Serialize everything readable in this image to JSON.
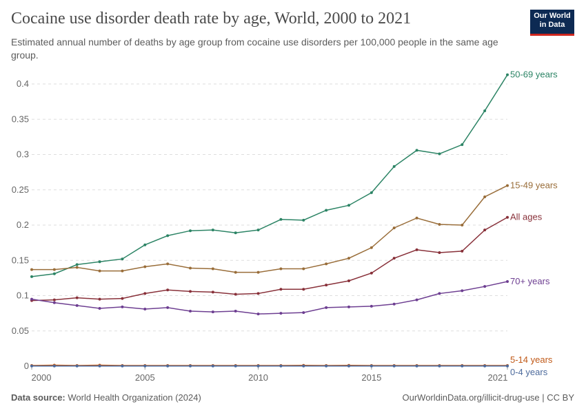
{
  "header": {
    "title": "Cocaine use disorder death rate by age, World, 2000 to 2021",
    "subtitle": "Estimated annual number of deaths by age group from cocaine use disorders per 100,000 people in the same age group.",
    "logo": "Our World in Data"
  },
  "footer": {
    "source_label": "Data source:",
    "source": "World Health Organization (2024)",
    "link": "OurWorldinData.org/illicit-drug-use | CC BY"
  },
  "chart_data": {
    "type": "line",
    "title": "Cocaine use disorder death rate by age, World, 2000 to 2021",
    "xlabel": "",
    "ylabel": "",
    "xlim": [
      2000,
      2021
    ],
    "ylim": [
      0,
      0.4
    ],
    "grid": "horizontal dashed",
    "legend": "inline-right",
    "x_ticks": [
      "2000",
      "2005",
      "2010",
      "2015",
      "2021"
    ],
    "y_ticks": [
      "0",
      "0.05",
      "0.1",
      "0.15",
      "0.2",
      "0.25",
      "0.3",
      "0.35",
      "0.4"
    ],
    "x": [
      2000,
      2001,
      2002,
      2003,
      2004,
      2005,
      2006,
      2007,
      2008,
      2009,
      2010,
      2011,
      2012,
      2013,
      2014,
      2015,
      2016,
      2017,
      2018,
      2019,
      2020,
      2021
    ],
    "series": [
      {
        "name": "50-69 years",
        "color": "#2c8465",
        "values": [
          0.127,
          0.131,
          0.144,
          0.148,
          0.152,
          0.172,
          0.185,
          0.192,
          0.193,
          0.189,
          0.193,
          0.208,
          0.207,
          0.221,
          0.228,
          0.246,
          0.283,
          0.306,
          0.301,
          0.314,
          0.362,
          0.413
        ]
      },
      {
        "name": "15-49 years",
        "color": "#996d39",
        "values": [
          0.137,
          0.137,
          0.14,
          0.135,
          0.135,
          0.141,
          0.145,
          0.139,
          0.138,
          0.133,
          0.133,
          0.138,
          0.138,
          0.145,
          0.153,
          0.168,
          0.196,
          0.21,
          0.201,
          0.2,
          0.24,
          0.256
        ]
      },
      {
        "name": "All ages",
        "color": "#883039",
        "values": [
          0.093,
          0.094,
          0.097,
          0.095,
          0.096,
          0.103,
          0.108,
          0.106,
          0.105,
          0.102,
          0.103,
          0.109,
          0.109,
          0.115,
          0.121,
          0.132,
          0.153,
          0.165,
          0.161,
          0.163,
          0.193,
          0.211
        ]
      },
      {
        "name": "70+ years",
        "color": "#6d3e91",
        "values": [
          0.095,
          0.09,
          0.086,
          0.082,
          0.084,
          0.081,
          0.083,
          0.078,
          0.077,
          0.078,
          0.074,
          0.075,
          0.076,
          0.083,
          0.084,
          0.085,
          0.088,
          0.094,
          0.103,
          0.107,
          0.113,
          0.12
        ]
      },
      {
        "name": "5-14 years",
        "color": "#c05917",
        "values": [
          0.001,
          0.0015,
          0.001,
          0.0015,
          0.001,
          0.001,
          0.001,
          0.001,
          0.001,
          0.001,
          0.001,
          0.001,
          0.0012,
          0.001,
          0.0012,
          0.001,
          0.001,
          0.001,
          0.001,
          0.001,
          0.001,
          0.001
        ]
      },
      {
        "name": "0-4 years",
        "color": "#4c6a9c",
        "values": [
          0.0002,
          0.0002,
          0.0002,
          0.0002,
          0.0002,
          0.0002,
          0.0002,
          0.0002,
          0.0002,
          0.0002,
          0.0002,
          0.0002,
          0.0002,
          0.0002,
          0.0002,
          0.0002,
          0.0002,
          0.0002,
          0.0002,
          0.0002,
          0.0002,
          0.0002
        ]
      }
    ]
  }
}
